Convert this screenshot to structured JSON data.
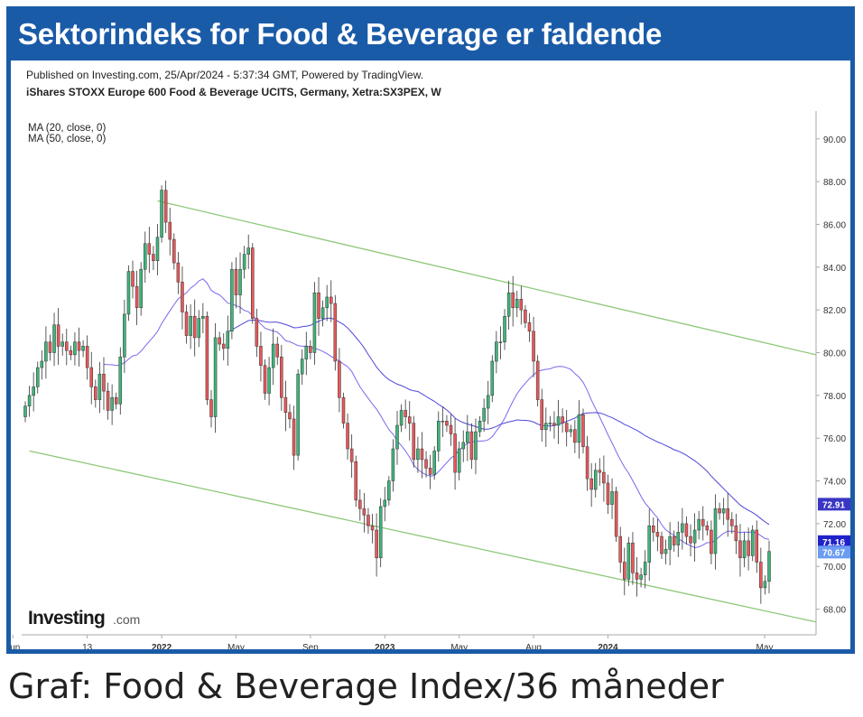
{
  "banner": {
    "title": "Sektorindeks for Food & Beverage er faldende"
  },
  "chart_header": {
    "published": "Published on Investing.com, 25/Apr/2024 - 5:37:34 GMT, Powered by TradingView.",
    "instrument": "iShares STOXX Europe 600 Food & Beverage UCITS, Germany, Xetra:SX3PEX, W"
  },
  "caption": "Graf: Food & Beverage Index/36 måneder",
  "logo": {
    "brand": "Investing",
    "suffix": ".com"
  },
  "chart_data": {
    "type": "candlestick",
    "period": "weekly",
    "legend": [
      "MA (20, close, 0)",
      "MA (50, close, 0)"
    ],
    "legend_position": "top-left",
    "x_ticks": [
      "Jun",
      "13",
      "2022",
      "May",
      "Sep",
      "2023",
      "May",
      "Aug",
      "2024",
      "May"
    ],
    "y_ticks": [
      "68.00",
      "70.00",
      "72.00",
      "74.00",
      "76.00",
      "78.00",
      "80.00",
      "82.00",
      "84.00",
      "86.00",
      "88.00",
      "90.00"
    ],
    "ylim": [
      66.8,
      91.3
    ],
    "grid": false,
    "y_axis_side": "right",
    "colors": {
      "up": "#3fb57a",
      "down": "#e8585a",
      "ma20": "#7b68ee",
      "ma50": "#4f47d9",
      "channel": "#8dc878"
    },
    "price_labels": [
      {
        "text": "72.91",
        "value": 72.91,
        "color": "#3a36c4"
      },
      {
        "text": "71.16",
        "value": 71.16,
        "color": "#1f22c9"
      },
      {
        "text": "70.67",
        "value": 70.67,
        "color": "#6b9cf2"
      }
    ],
    "channel_lines": [
      {
        "name": "upper",
        "from": 87.1,
        "to": 79.9
      },
      {
        "name": "lower",
        "from": 75.4,
        "to": 67.4
      }
    ],
    "close": [
      77.5,
      78.0,
      78.4,
      79.3,
      79.6,
      80.5,
      80.0,
      81.3,
      80.3,
      80.5,
      80.1,
      79.9,
      80.5,
      80.1,
      80.3,
      79.3,
      78.4,
      77.8,
      79.0,
      78.2,
      77.3,
      77.9,
      77.6,
      79.8,
      81.8,
      83.8,
      83.1,
      82.1,
      83.9,
      85.1,
      84.6,
      84.3,
      85.4,
      87.6,
      86.1,
      85.3,
      84.2,
      83.3,
      81.9,
      80.8,
      81.7,
      80.7,
      81.6,
      81.7,
      77.8,
      77.0,
      80.7,
      80.4,
      80.2,
      81.0,
      83.9,
      82.7,
      83.9,
      84.6,
      84.9,
      81.6,
      80.3,
      79.4,
      78.1,
      79.3,
      80.4,
      79.8,
      77.9,
      77.2,
      76.9,
      75.2,
      79.0,
      79.7,
      80.3,
      80.0,
      82.8,
      81.6,
      82.1,
      82.6,
      82.3,
      79.6,
      77.9,
      76.7,
      75.5,
      74.9,
      73.1,
      72.7,
      72.4,
      71.9,
      71.7,
      70.4,
      72.8,
      73.1,
      74.0,
      75.5,
      76.6,
      77.3,
      77.0,
      76.7,
      75.0,
      75.5,
      75.0,
      74.6,
      74.3,
      75.4,
      76.8,
      76.8,
      76.6,
      76.2,
      74.4,
      75.5,
      75.8,
      76.3,
      75.0,
      76.3,
      76.8,
      77.4,
      78.0,
      79.6,
      80.5,
      80.5,
      81.7,
      82.8,
      82.1,
      82.5,
      82.0,
      81.4,
      81.0,
      79.6,
      77.8,
      76.4,
      76.7,
      76.7,
      76.6,
      77.0,
      76.7,
      76.3,
      76.4,
      75.8,
      77.1,
      75.6,
      74.1,
      73.6,
      74.5,
      74.4,
      73.9,
      72.9,
      73.5,
      71.4,
      70.2,
      69.4,
      71.1,
      69.7,
      69.4,
      69.6,
      70.2,
      71.9,
      71.6,
      71.4,
      70.6,
      70.8,
      71.4,
      71.0,
      71.6,
      72.0,
      71.4,
      71.1,
      71.7,
      72.2,
      71.9,
      71.7,
      70.6,
      72.7,
      72.5,
      72.7,
      72.2,
      71.9,
      71.2,
      70.4,
      71.2,
      70.5,
      71.7,
      70.2,
      69.0,
      69.3,
      70.7
    ]
  }
}
